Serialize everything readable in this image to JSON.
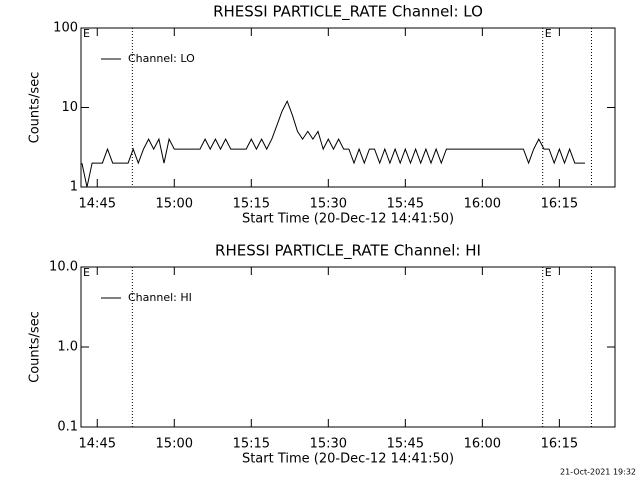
{
  "chart_data": [
    {
      "type": "line",
      "title": "RHESSI PARTICLE_RATE Channel: LO",
      "xlabel": "Start Time (20-Dec-12 14:41:50)",
      "ylabel": "Counts/sec",
      "log_y": true,
      "ylim": [
        1,
        100
      ],
      "yticks": [
        1,
        10,
        100
      ],
      "xlim": [
        "14:41:50",
        "16:25:50"
      ],
      "xticks": [
        "14:45",
        "15:00",
        "15:15",
        "15:30",
        "15:45",
        "16:00",
        "16:15"
      ],
      "vlines": [
        "14:51:50",
        "16:11:45",
        "16:21:15"
      ],
      "annotations": [
        {
          "text": "E",
          "x": "14:41:50"
        },
        {
          "text": "E",
          "x": "16:11:45"
        }
      ],
      "legend": "upper left",
      "x": [
        "14:42",
        "14:43",
        "14:44",
        "14:45",
        "14:46",
        "14:47",
        "14:48",
        "14:49",
        "14:50",
        "14:51",
        "14:52",
        "14:53",
        "14:54",
        "14:55",
        "14:56",
        "14:57",
        "14:58",
        "14:59",
        "15:00",
        "15:01",
        "15:02",
        "15:03",
        "15:04",
        "15:05",
        "15:06",
        "15:07",
        "15:08",
        "15:09",
        "15:10",
        "15:11",
        "15:12",
        "15:13",
        "15:14",
        "15:15",
        "15:16",
        "15:17",
        "15:18",
        "15:19",
        "15:20",
        "15:21",
        "15:22",
        "15:23",
        "15:24",
        "15:25",
        "15:26",
        "15:27",
        "15:28",
        "15:29",
        "15:30",
        "15:31",
        "15:32",
        "15:33",
        "15:34",
        "15:35",
        "15:36",
        "15:37",
        "15:38",
        "15:39",
        "15:40",
        "15:41",
        "15:42",
        "15:43",
        "15:44",
        "15:45",
        "15:46",
        "15:47",
        "15:48",
        "15:49",
        "15:50",
        "15:51",
        "15:52",
        "15:53",
        "15:54",
        "15:55",
        "15:56",
        "15:57",
        "15:58",
        "15:59",
        "16:00",
        "16:01",
        "16:02",
        "16:03",
        "16:04",
        "16:05",
        "16:06",
        "16:07",
        "16:08",
        "16:09",
        "16:10",
        "16:11",
        "16:12",
        "16:13",
        "16:14",
        "16:15",
        "16:16",
        "16:17",
        "16:18",
        "16:19",
        "16:20"
      ],
      "series": [
        {
          "name": "Channel: LO",
          "color": "#000000",
          "values": [
            2,
            1,
            2,
            2,
            2,
            3,
            2,
            2,
            2,
            2,
            3,
            2,
            3,
            4,
            3,
            4,
            2,
            4,
            3,
            3,
            3,
            3,
            3,
            3,
            4,
            3,
            4,
            3,
            4,
            3,
            3,
            3,
            3,
            4,
            3,
            4,
            3,
            4,
            6,
            9,
            12,
            8,
            5,
            4,
            5,
            4,
            5,
            3,
            4,
            3,
            4,
            3,
            3,
            2,
            3,
            2,
            3,
            3,
            2,
            3,
            2,
            3,
            2,
            3,
            2,
            3,
            2,
            3,
            2,
            3,
            2,
            3,
            3,
            3,
            3,
            3,
            3,
            3,
            3,
            3,
            3,
            3,
            3,
            3,
            3,
            3,
            3,
            2,
            3,
            4,
            3,
            3,
            2,
            3,
            2,
            3,
            2,
            2,
            2
          ]
        }
      ]
    },
    {
      "type": "line",
      "title": "RHESSI PARTICLE_RATE Channel: HI",
      "xlabel": "Start Time (20-Dec-12 14:41:50)",
      "ylabel": "Counts/sec",
      "log_y": true,
      "ylim": [
        0.1,
        10
      ],
      "yticks": [
        0.1,
        {
          "value": 1,
          "label": "1.0"
        },
        {
          "value": 10,
          "label": "10.0"
        }
      ],
      "xlim": [
        "14:41:50",
        "16:25:50"
      ],
      "xticks": [
        "14:45",
        "15:00",
        "15:15",
        "15:30",
        "15:45",
        "16:00",
        "16:15"
      ],
      "vlines": [
        "14:51:50",
        "16:11:45",
        "16:21:15"
      ],
      "annotations": [
        {
          "text": "E",
          "x": "14:41:50"
        },
        {
          "text": "E",
          "x": "16:11:45"
        }
      ],
      "legend": "upper left",
      "x": [],
      "series": [
        {
          "name": "Channel: HI",
          "color": "#000000",
          "values": []
        }
      ]
    }
  ],
  "footer": "21-Oct-2021 19:32"
}
